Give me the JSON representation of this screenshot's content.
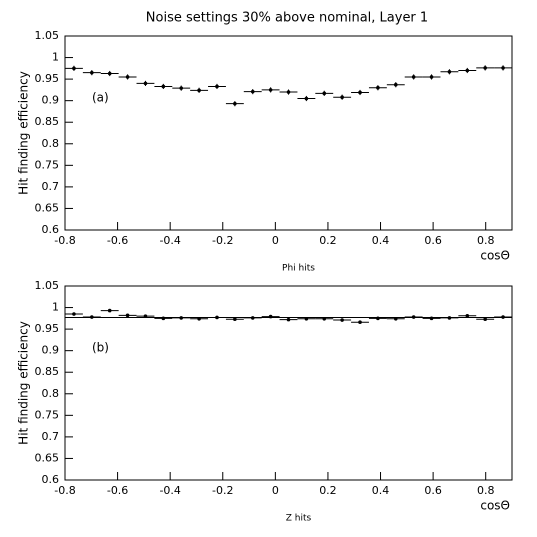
{
  "title": "Noise settings 30% above nominal, Layer 1",
  "chart_data": [
    {
      "type": "errorbar",
      "xlabel": "Phi hits",
      "axis_title": "cosΘ",
      "ylabel": "Hit finding efficiency",
      "annotation": "(a)",
      "x": [
        -0.766,
        -0.698,
        -0.63,
        -0.562,
        -0.494,
        -0.426,
        -0.358,
        -0.29,
        -0.222,
        -0.154,
        -0.086,
        -0.018,
        0.05,
        0.118,
        0.186,
        0.254,
        0.322,
        0.39,
        0.458,
        0.526,
        0.594,
        0.662,
        0.73,
        0.798,
        0.866
      ],
      "values": [
        0.975,
        0.965,
        0.963,
        0.955,
        0.94,
        0.933,
        0.929,
        0.924,
        0.933,
        0.893,
        0.921,
        0.925,
        0.92,
        0.905,
        0.917,
        0.908,
        0.919,
        0.93,
        0.937,
        0.955,
        0.955,
        0.967,
        0.97,
        0.976,
        0.976
      ],
      "xerr": 0.034,
      "yerr": 0.006,
      "color": "#000000",
      "xlim": [
        -0.8,
        0.9
      ],
      "xticks": [
        -0.8,
        -0.6,
        -0.4,
        -0.2,
        0,
        0.2,
        0.4,
        0.6,
        0.8
      ],
      "ylim": [
        0.6,
        1.05
      ],
      "yticks": [
        0.6,
        0.65,
        0.7,
        0.75,
        0.8,
        0.85,
        0.9,
        0.95,
        1,
        1.05
      ]
    },
    {
      "type": "errorbar",
      "xlabel": "Z hits",
      "axis_title": "cosΘ",
      "ylabel": "Hit finding efficiency",
      "annotation": "(b)",
      "x": [
        -0.766,
        -0.698,
        -0.63,
        -0.562,
        -0.494,
        -0.426,
        -0.358,
        -0.29,
        -0.222,
        -0.154,
        -0.086,
        -0.018,
        0.05,
        0.118,
        0.186,
        0.254,
        0.322,
        0.39,
        0.458,
        0.526,
        0.594,
        0.662,
        0.73,
        0.798,
        0.866
      ],
      "values": [
        0.985,
        0.978,
        0.993,
        0.982,
        0.98,
        0.975,
        0.976,
        0.974,
        0.977,
        0.973,
        0.976,
        0.979,
        0.972,
        0.974,
        0.974,
        0.971,
        0.966,
        0.975,
        0.974,
        0.978,
        0.975,
        0.976,
        0.981,
        0.973,
        0.978
      ],
      "xerr": 0.034,
      "yerr": 0.003,
      "fit": 0.977,
      "color": "#000000",
      "xlim": [
        -0.8,
        0.9
      ],
      "xticks": [
        -0.8,
        -0.6,
        -0.4,
        -0.2,
        0,
        0.2,
        0.4,
        0.6,
        0.8
      ],
      "ylim": [
        0.6,
        1.05
      ],
      "yticks": [
        0.6,
        0.65,
        0.7,
        0.75,
        0.8,
        0.85,
        0.9,
        0.95,
        1,
        1.05
      ]
    }
  ]
}
